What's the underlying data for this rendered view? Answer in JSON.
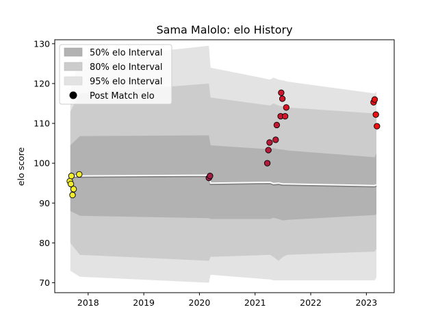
{
  "chart_data": {
    "type": "scatter",
    "title": "Sama Malolo: elo History",
    "xlabel": "",
    "ylabel": "elo score",
    "xlim": [
      2017.4,
      2023.5
    ],
    "ylim": [
      67.5,
      131
    ],
    "x_ticks": [
      2018,
      2019,
      2020,
      2021,
      2022,
      2023
    ],
    "x_tick_labels": [
      "2018",
      "2019",
      "2020",
      "2021",
      "2022",
      "2023"
    ],
    "y_ticks": [
      70,
      80,
      90,
      100,
      110,
      120,
      130
    ],
    "y_tick_labels": [
      "70",
      "80",
      "90",
      "100",
      "110",
      "120",
      "130"
    ],
    "grid": false,
    "legend_position": "top-left",
    "legend": [
      "50% elo Interval",
      "80% elo Interval",
      "95% elo Interval",
      "Post Match elo"
    ],
    "colors": {
      "band50": "#b2b2b2",
      "band80": "#cccccc",
      "band95": "#e3e3e3",
      "mean_line": "#ffffff",
      "mean_shadow": "#808080"
    },
    "mean_line": {
      "x": [
        2017.68,
        2017.85,
        2020.17,
        2020.2,
        2021.27,
        2021.33,
        2021.42,
        2021.5,
        2021.58,
        2023.15,
        2023.18
      ],
      "y": [
        96.8,
        96.8,
        97.0,
        95.0,
        95.2,
        94.9,
        95.0,
        94.8,
        94.8,
        94.4,
        94.6
      ]
    },
    "bands": {
      "x": [
        2017.68,
        2017.85,
        2020.17,
        2020.2,
        2021.27,
        2021.33,
        2021.42,
        2021.5,
        2021.58,
        2023.15,
        2023.18
      ],
      "p50_upper": [
        104.5,
        106.8,
        107.0,
        104.5,
        103.5,
        103.8,
        103.5,
        103.4,
        103.2,
        101.5,
        102.5
      ],
      "p50_lower": [
        88.0,
        86.8,
        86.2,
        86.0,
        86.0,
        86.3,
        86.0,
        85.6,
        85.8,
        87.0,
        87.2
      ],
      "p80_upper": [
        113.0,
        117.5,
        120.0,
        116.5,
        114.5,
        115.0,
        114.5,
        114.2,
        114.0,
        112.5,
        113.0
      ],
      "p80_lower": [
        80.0,
        77.0,
        75.5,
        76.5,
        77.0,
        76.5,
        75.5,
        76.5,
        77.0,
        77.8,
        78.5
      ],
      "p95_upper": [
        118.5,
        126.0,
        129.5,
        124.0,
        121.0,
        121.5,
        121.0,
        120.8,
        120.5,
        117.5,
        118.0
      ],
      "p95_lower": [
        73.0,
        71.5,
        70.0,
        72.0,
        70.8,
        70.6,
        70.6,
        70.6,
        70.6,
        70.6,
        71.3
      ]
    },
    "series": [
      {
        "name": "Post Match elo",
        "x": [
          2017.67,
          2017.69,
          2017.7,
          2017.72,
          2017.74,
          2017.84,
          2020.17,
          2020.19,
          2021.22,
          2021.24,
          2021.26,
          2021.37,
          2021.39,
          2021.46,
          2021.47,
          2021.49,
          2021.54,
          2021.56,
          2023.13,
          2023.15,
          2023.17,
          2023.19
        ],
        "y": [
          95.5,
          94.8,
          96.8,
          92.0,
          93.5,
          97.2,
          96.3,
          96.8,
          100.0,
          103.3,
          105.2,
          105.9,
          109.6,
          111.8,
          117.7,
          116.2,
          111.8,
          114.0,
          115.3,
          116.0,
          112.2,
          109.3
        ],
        "colors": [
          "#f2ee2e",
          "#f2ee2e",
          "#f2ee2e",
          "#f2ee2e",
          "#f2ee2e",
          "#f2ee2e",
          "#9a1f4a",
          "#a01f44",
          "#b01c3e",
          "#b51b3b",
          "#b81b38",
          "#bd1a36",
          "#c21933",
          "#c81830",
          "#cc172d",
          "#cf162b",
          "#d41628",
          "#d81525",
          "#e31519",
          "#e51416",
          "#e81313",
          "#ec1212"
        ]
      }
    ]
  }
}
